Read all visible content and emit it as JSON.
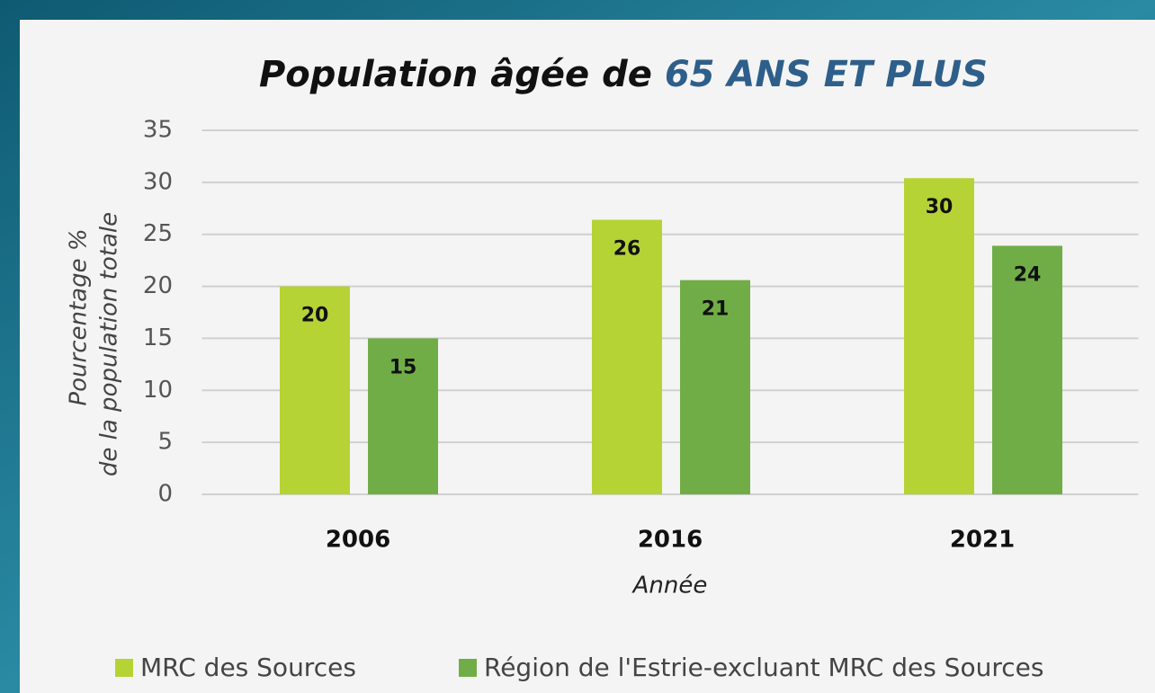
{
  "chart_data": {
    "type": "bar",
    "title": "Population âgée de",
    "title_highlight": "65 ANS ET PLUS",
    "y_label": [
      "Pourcentage %",
      "de la population totale"
    ],
    "x_label": "Année",
    "categories": [
      "2006",
      "2016",
      "2021"
    ],
    "series": [
      {
        "name": "MRC des Sources",
        "color": "#b5d334",
        "values": [
          20,
          26.4,
          30.4
        ],
        "value_labels": [
          "20",
          "26",
          "30"
        ]
      },
      {
        "name": "Région de l'Estrie-excluant MRC des Sources",
        "color": "#70ad47",
        "values": [
          15,
          20.6,
          23.9
        ],
        "value_labels": [
          "15",
          "21",
          "24"
        ]
      }
    ],
    "ylim": [
      0,
      35
    ],
    "yticks": [
      0,
      5,
      10,
      15,
      20,
      25,
      30,
      35
    ],
    "grid": true,
    "legend": "bottom"
  }
}
